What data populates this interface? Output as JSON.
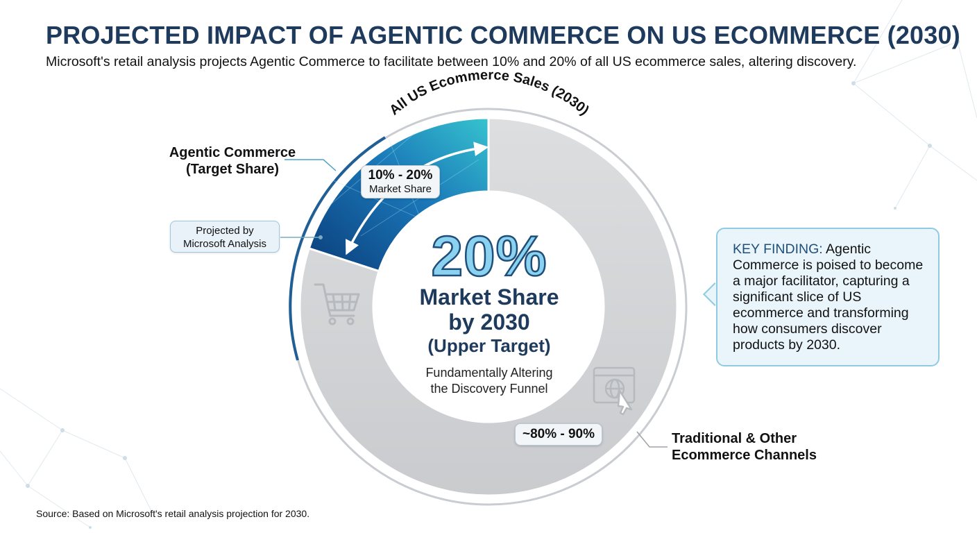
{
  "header": {
    "title": "PROJECTED IMPACT OF AGENTIC COMMERCE ON US ECOMMERCE (2030)",
    "subtitle": "Microsoft's retail analysis projects Agentic Commerce to facilitate between 10% and 20% of all US ecommerce sales, altering discovery."
  },
  "chart_data": {
    "type": "pie",
    "title": "All US Ecommerce Sales (2030)",
    "style": "donut",
    "slices": [
      {
        "name": "Agentic Commerce (Target Share)",
        "label_line1": "Agentic Commerce",
        "label_line2": "(Target Share)",
        "value": 20,
        "range_label": "10% - 20%",
        "range_sublabel": "Market Share",
        "color": "#0e4d8c"
      },
      {
        "name": "Traditional & Other Ecommerce Channels",
        "label_line1": "Traditional & Other",
        "label_line2": "Ecommerce Channels",
        "value": 80,
        "range_label": "~80% - 90%",
        "color": "#d3d5d7"
      }
    ],
    "center": {
      "value_label": "20%",
      "line1": "Market Share",
      "line2": "by 2030",
      "line3": "(Upper Target)",
      "note_line1": "Fundamentally Altering",
      "note_line2": "the Discovery Funnel"
    },
    "annotations": [
      {
        "text_line1": "Projected by",
        "text_line2": "Microsoft Analysis"
      }
    ]
  },
  "finding": {
    "label": "KEY FINDING:",
    "text": " Agentic Commerce is poised to become a major facilitator, capturing a significant slice of US ecommerce and transforming how consumers discover products by 2030."
  },
  "icons": [
    "shopping-cart-icon",
    "web-browser-globe-icon"
  ],
  "source": "Source: Based on Microsoft's retail analysis projection for 2030."
}
